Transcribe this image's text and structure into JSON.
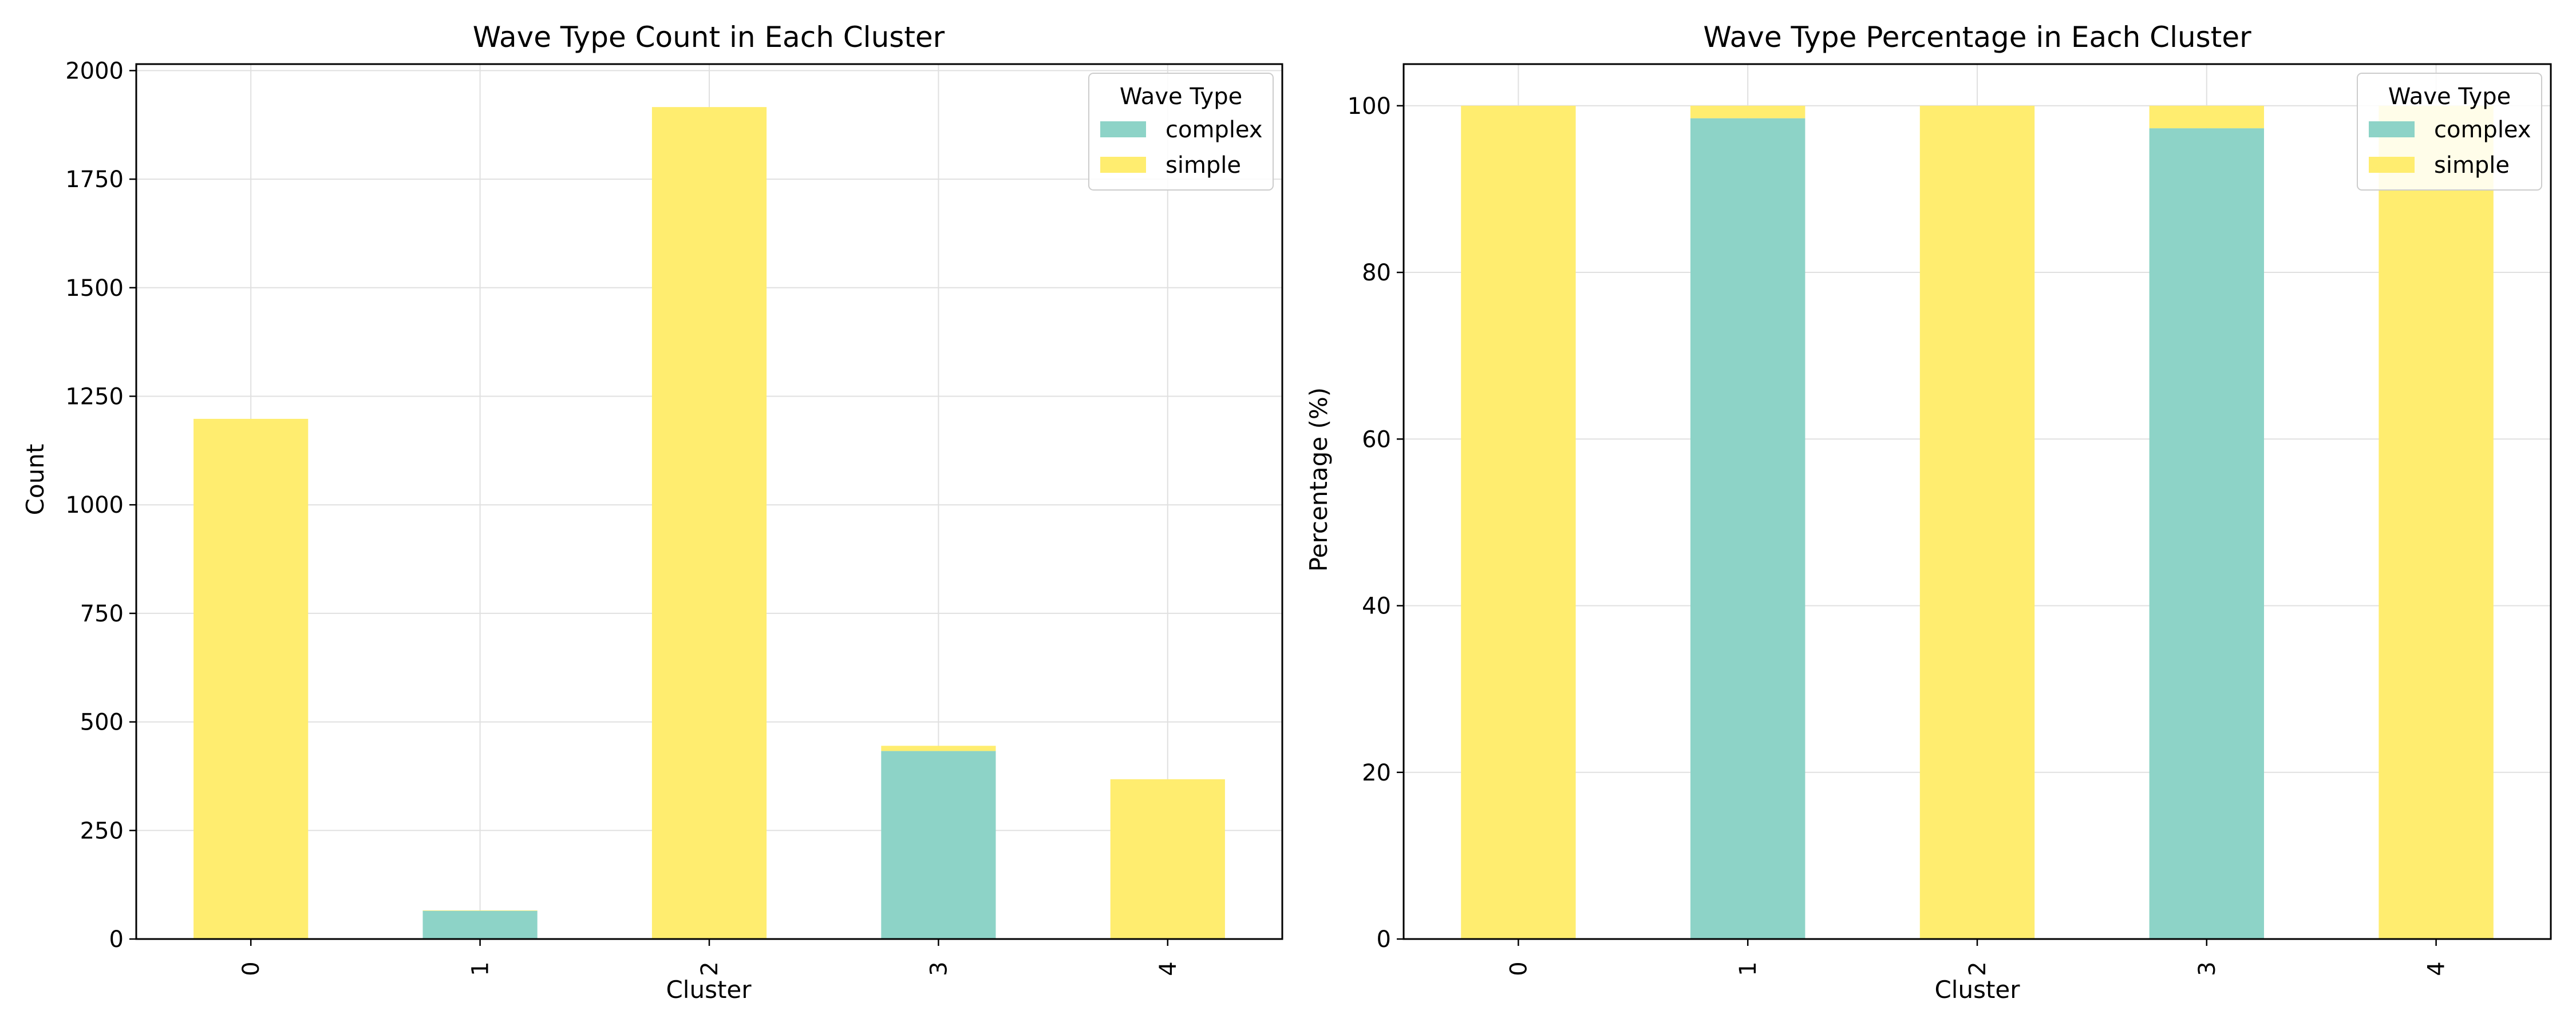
{
  "colors": {
    "complex": "#8dd3c7",
    "simple": "#ffed6f",
    "grid": "#e0e0e0",
    "axis": "#000000"
  },
  "chart_data": [
    {
      "type": "bar",
      "stacked": true,
      "title": "Wave Type Count in Each Cluster",
      "xlabel": "Cluster",
      "ylabel": "Count",
      "categories": [
        "0",
        "1",
        "2",
        "3",
        "4"
      ],
      "series": [
        {
          "name": "complex",
          "values": [
            0,
            65,
            0,
            433,
            0
          ]
        },
        {
          "name": "simple",
          "values": [
            1198,
            1,
            1916,
            12,
            368
          ]
        }
      ],
      "ylim": [
        0,
        2015
      ],
      "yticks": [
        0,
        250,
        500,
        750,
        1000,
        1250,
        1500,
        1750,
        2000
      ],
      "grid": true,
      "legend": {
        "title": "Wave Type",
        "placement": "upper-right"
      }
    },
    {
      "type": "bar",
      "stacked": true,
      "title": "Wave Type Percentage in Each Cluster",
      "xlabel": "Cluster",
      "ylabel": "Percentage (%)",
      "categories": [
        "0",
        "1",
        "2",
        "3",
        "4"
      ],
      "series": [
        {
          "name": "complex",
          "values": [
            0,
            98.5,
            0,
            97.3,
            0
          ]
        },
        {
          "name": "simple",
          "values": [
            100,
            1.5,
            100,
            2.7,
            100
          ]
        }
      ],
      "ylim": [
        0,
        105
      ],
      "yticks": [
        0,
        20,
        40,
        60,
        80,
        100
      ],
      "grid": true,
      "legend": {
        "title": "Wave Type",
        "placement": "upper-right"
      }
    }
  ]
}
